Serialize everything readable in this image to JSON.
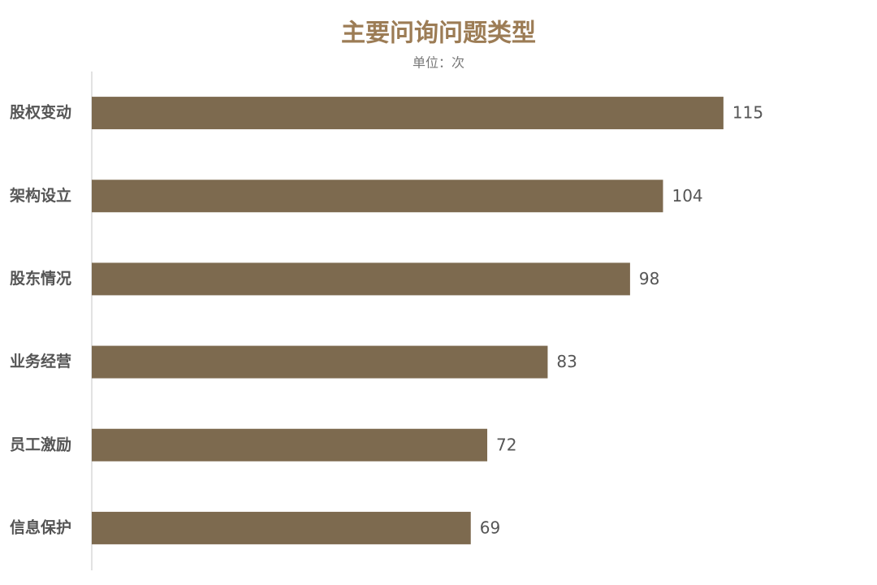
{
  "chart_data": {
    "type": "hbar",
    "title": "主要问询问题类型",
    "subtitle": "单位：次",
    "categories": [
      "股权变动",
      "架构设立",
      "股东情况",
      "业务经营",
      "员工激励",
      "信息保护"
    ],
    "values": [
      115,
      104,
      98,
      83,
      72,
      69
    ],
    "color": "#7d6a4f",
    "xlim": [
      0,
      140
    ]
  }
}
